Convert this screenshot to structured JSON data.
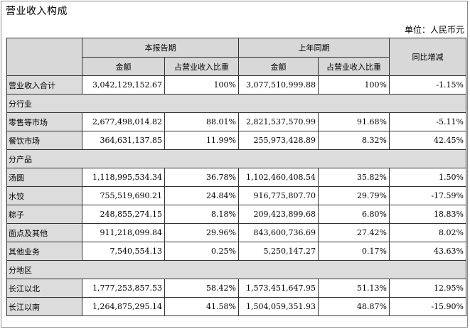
{
  "title": "营业收入构成",
  "unit": "单位：人民币元",
  "header": {
    "current_period": "本报告期",
    "prior_period": "上年同期",
    "yoy_change": "同比增减",
    "amount": "金额",
    "share": "占营业收入比重"
  },
  "rows": [
    {
      "type": "row",
      "label": "营业收入合计",
      "cur_amt": "3,042,129,152.67",
      "cur_pct": "100%",
      "prev_amt": "3,077,510,999.88",
      "prev_pct": "100%",
      "yoy": "-1.15%"
    },
    {
      "type": "section",
      "label": "分行业"
    },
    {
      "type": "row",
      "label": "零售等市场",
      "cur_amt": "2,677,498,014.82",
      "cur_pct": "88.01%",
      "prev_amt": "2,821,537,570.99",
      "prev_pct": "91.68%",
      "yoy": "-5.11%"
    },
    {
      "type": "row",
      "label": "餐饮市场",
      "cur_amt": "364,631,137.85",
      "cur_pct": "11.99%",
      "prev_amt": "255,973,428.89",
      "prev_pct": "8.32%",
      "yoy": "42.45%"
    },
    {
      "type": "section",
      "label": "分产品"
    },
    {
      "type": "row",
      "label": "汤圆",
      "cur_amt": "1,118,995,534.34",
      "cur_pct": "36.78%",
      "prev_amt": "1,102,460,408.54",
      "prev_pct": "35.82%",
      "yoy": "1.50%"
    },
    {
      "type": "row",
      "label": "水饺",
      "cur_amt": "755,519,690.21",
      "cur_pct": "24.84%",
      "prev_amt": "916,775,807.70",
      "prev_pct": "29.79%",
      "yoy": "-17.59%"
    },
    {
      "type": "row",
      "label": "粽子",
      "cur_amt": "248,855,274.15",
      "cur_pct": "8.18%",
      "prev_amt": "209,423,899.68",
      "prev_pct": "6.80%",
      "yoy": "18.83%"
    },
    {
      "type": "row",
      "label": "面点及其他",
      "cur_amt": "911,218,099.84",
      "cur_pct": "29.96%",
      "prev_amt": "843,600,736.69",
      "prev_pct": "27.42%",
      "yoy": "8.02%"
    },
    {
      "type": "row",
      "label": "其他业务",
      "cur_amt": "7,540,554.13",
      "cur_pct": "0.25%",
      "prev_amt": "5,250,147.27",
      "prev_pct": "0.17%",
      "yoy": "43.63%"
    },
    {
      "type": "section",
      "label": "分地区"
    },
    {
      "type": "row",
      "label": "长江以北",
      "cur_amt": "1,777,253,857.53",
      "cur_pct": "58.42%",
      "prev_amt": "1,573,451,647.95",
      "prev_pct": "51.13%",
      "yoy": "12.95%"
    },
    {
      "type": "row",
      "label": "长江以南",
      "cur_amt": "1,264,875,295.14",
      "cur_pct": "41.58%",
      "prev_amt": "1,504,059,351.93",
      "prev_pct": "48.87%",
      "yoy": "-15.90%"
    }
  ],
  "colors": {
    "header_bg": "#d8d8d8",
    "label_bg": "#dcdcdc",
    "border": "#333333"
  }
}
